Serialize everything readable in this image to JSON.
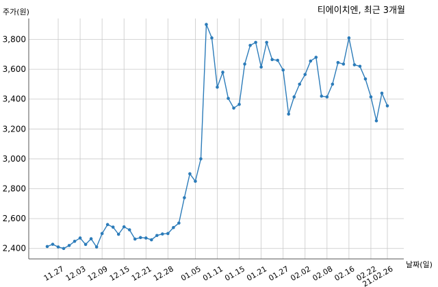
{
  "chart_data": {
    "type": "line",
    "title": "티에이치엔, 최근 3개월",
    "ylabel": "주가(원)",
    "xlabel": "날짜(일)",
    "ylim": [
      2330,
      3940
    ],
    "yticks": [
      2400,
      2600,
      2800,
      3000,
      3200,
      3400,
      3600,
      3800
    ],
    "ytick_labels": [
      "2,400",
      "2,600",
      "2,800",
      "3,000",
      "3,200",
      "3,400",
      "3,600",
      "3,800"
    ],
    "grid": true,
    "color": "#2b7bb9",
    "xtick_labels": [
      "11.27",
      "12.03",
      "12.09",
      "12.15",
      "12.21",
      "12.28",
      "01.05",
      "01.11",
      "01.15",
      "01.21",
      "01.27",
      "02.02",
      "02.08",
      "02.16",
      "02.22",
      "21.02.26"
    ],
    "xtick_indices": [
      2,
      6,
      10,
      14,
      18,
      22,
      27,
      31,
      35,
      39,
      43,
      47,
      51,
      55,
      59,
      62
    ],
    "series": [
      {
        "values": [
          2413,
          2428,
          2410,
          2400,
          2420,
          2448,
          2470,
          2427,
          2465,
          2410,
          2500,
          2560,
          2543,
          2495,
          2545,
          2525,
          2463,
          2473,
          2470,
          2458,
          2487,
          2497,
          2500,
          2540,
          2570,
          2740,
          2900,
          2850,
          3000,
          3900,
          3810,
          3480,
          3580,
          3405,
          3340,
          3365,
          3635,
          3760,
          3780,
          3615,
          3780,
          3665,
          3660,
          3595,
          3300,
          3415,
          3500,
          3565,
          3655,
          3680,
          3420,
          3415,
          3500,
          3645,
          3635,
          3810,
          3630,
          3620,
          3535,
          3415,
          3255,
          3440,
          3355
        ]
      }
    ]
  }
}
